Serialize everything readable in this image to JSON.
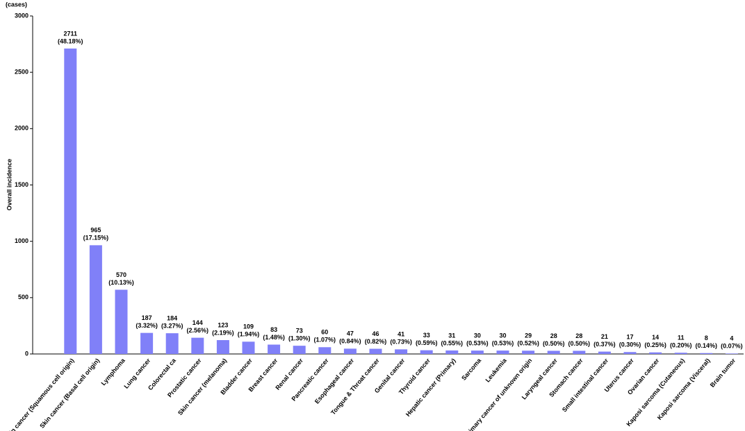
{
  "chart_data": {
    "type": "bar",
    "unit_label": "(cases)",
    "y_label": "Overall incidence",
    "categories": [
      "Skin cancer (Squamous cell origin)",
      "Skin cancer (Basal cell origin)",
      "Lymphoma",
      "Lung cancer",
      "Colorectal ca",
      "Prostatic cancer",
      "Skin cancer (melanoma)",
      "Bladder cancer",
      "Breast cancer",
      "Renal cancer",
      "Pancreatic cancer",
      "Esophageal cancer",
      "Tongue & Throat cancer",
      "Genital cancer",
      "Thyroid cancer",
      "Hepatic cancer (Primary)",
      "Sarcoma",
      "Leukemia",
      "Primary cancer of unknown origin",
      "Laryngeal cancer",
      "Stomach cancer",
      "Small intestinal cancer",
      "Uterus cancer",
      "Ovarian cancer",
      "Kaposi sarcoma (Cutaneous)",
      "Kaposi sarcoma (Visceral)",
      "Brain tumor"
    ],
    "values": [
      2711,
      965,
      570,
      187,
      184,
      144,
      123,
      109,
      83,
      73,
      60,
      47,
      46,
      41,
      33,
      31,
      30,
      30,
      29,
      28,
      28,
      21,
      17,
      14,
      11,
      8,
      4
    ],
    "percent_labels": [
      "(48.18%)",
      "(17.15%)",
      "(10.13%)",
      "(3.32%)",
      "(3.27%)",
      "(2.56%)",
      "(2.19%)",
      "(1.94%)",
      "(1.48%)",
      "(1.30%)",
      "(1.07%)",
      "(0.84%)",
      "(0.82%)",
      "(0.73%)",
      "(0.59%)",
      "(0.55%)",
      "(0.53%)",
      "(0.53%)",
      "(0.52%)",
      "(0.50%)",
      "(0.50%)",
      "(0.37%)",
      "(0.30%)",
      "(0.25%)",
      "(0.20%)",
      "(0.14%)",
      "(0.07%)"
    ],
    "color": "#8080f8",
    "ylim": [
      0,
      3000
    ],
    "yticks": [
      0,
      500,
      1000,
      1500,
      2000,
      2500,
      3000
    ]
  }
}
